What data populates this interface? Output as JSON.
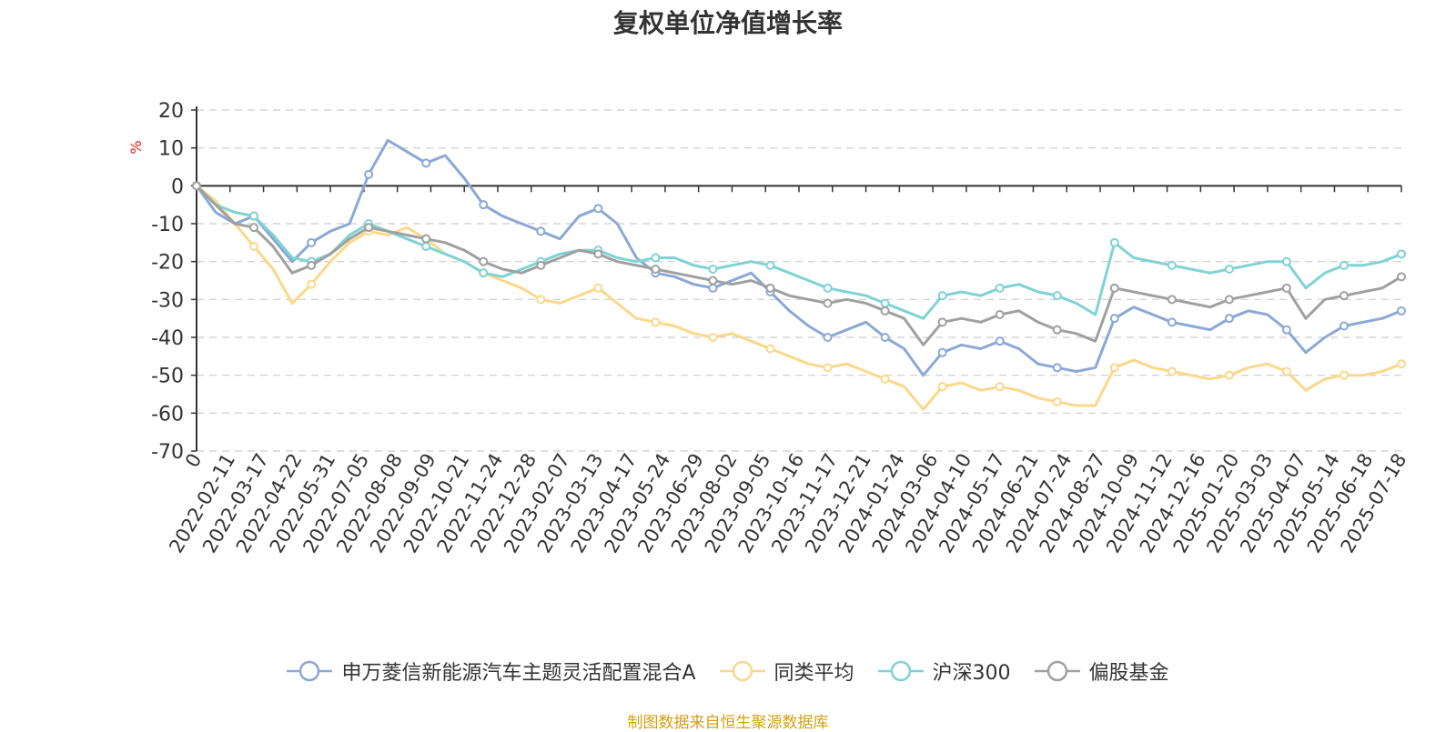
{
  "chart_data": {
    "type": "line",
    "title": "复权单位净值增长率",
    "ylabel": "%",
    "ylim": [
      -70,
      20
    ],
    "yticks": [
      20,
      10,
      0,
      -10,
      -20,
      -30,
      -40,
      -50,
      -60,
      -70
    ],
    "xticks": [
      "0",
      "2022-02-11",
      "2022-03-17",
      "2022-04-22",
      "2022-05-31",
      "2022-07-05",
      "2022-08-08",
      "2022-09-09",
      "2022-10-21",
      "2022-11-24",
      "2022-12-28",
      "2023-02-07",
      "2023-03-13",
      "2023-04-17",
      "2023-05-24",
      "2023-06-29",
      "2023-08-02",
      "2023-09-05",
      "2023-10-16",
      "2023-11-17",
      "2023-12-21",
      "2024-01-24",
      "2024-03-06",
      "2024-04-10",
      "2024-05-17",
      "2024-06-21",
      "2024-07-24",
      "2024-08-27",
      "2024-10-09",
      "2024-11-12",
      "2024-12-16",
      "2025-01-20",
      "2025-03-03",
      "2025-04-07",
      "2025-05-14",
      "2025-06-18",
      "2025-07-18"
    ],
    "grid": true,
    "legend_position": "bottom",
    "series": [
      {
        "name": "申万菱信新能源汽车主题灵活配置混合A",
        "color": "#8ba8d6",
        "values": [
          0,
          -7,
          -10,
          -8,
          -14,
          -20,
          -15,
          -12,
          -10,
          3,
          12,
          9,
          6,
          8,
          2,
          -5,
          -8,
          -10,
          -12,
          -14,
          -8,
          -6,
          -10,
          -19,
          -23,
          -24,
          -26,
          -27,
          -25,
          -23,
          -28,
          -33,
          -37,
          -40,
          -38,
          -36,
          -40,
          -43,
          -50,
          -44,
          -42,
          -43,
          -41,
          -43,
          -47,
          -48,
          -49,
          -48,
          -35,
          -32,
          -34,
          -36,
          -37,
          -38,
          -35,
          -33,
          -34,
          -38,
          -44,
          -40,
          -37,
          -36,
          -35,
          -33
        ]
      },
      {
        "name": "同类平均",
        "color": "#fbd88a",
        "values": [
          0,
          -4,
          -10,
          -16,
          -22,
          -31,
          -26,
          -20,
          -15,
          -12,
          -13,
          -11,
          -14,
          -18,
          -20,
          -23,
          -25,
          -27,
          -30,
          -31,
          -29,
          -27,
          -31,
          -35,
          -36,
          -37,
          -39,
          -40,
          -39,
          -41,
          -43,
          -45,
          -47,
          -48,
          -47,
          -49,
          -51,
          -53,
          -59,
          -53,
          -52,
          -54,
          -53,
          -54,
          -56,
          -57,
          -58,
          -58,
          -48,
          -46,
          -48,
          -49,
          -50,
          -51,
          -50,
          -48,
          -47,
          -49,
          -54,
          -51,
          -50,
          -50,
          -49,
          -47
        ]
      },
      {
        "name": "沪深300",
        "color": "#7fd3d3",
        "values": [
          0,
          -5,
          -7,
          -8,
          -13,
          -19,
          -20,
          -18,
          -13,
          -10,
          -12,
          -14,
          -16,
          -18,
          -20,
          -23,
          -24,
          -22,
          -20,
          -18,
          -17,
          -17,
          -19,
          -20,
          -19,
          -19,
          -21,
          -22,
          -21,
          -20,
          -21,
          -23,
          -25,
          -27,
          -28,
          -29,
          -31,
          -33,
          -35,
          -29,
          -28,
          -29,
          -27,
          -26,
          -28,
          -29,
          -31,
          -34,
          -15,
          -19,
          -20,
          -21,
          -22,
          -23,
          -22,
          -21,
          -20,
          -20,
          -27,
          -23,
          -21,
          -21,
          -20,
          -18
        ]
      },
      {
        "name": "偏股基金",
        "color": "#a0a0a0",
        "values": [
          0,
          -5,
          -10,
          -11,
          -16,
          -23,
          -21,
          -18,
          -14,
          -11,
          -12,
          -13,
          -14,
          -15,
          -17,
          -20,
          -22,
          -23,
          -21,
          -19,
          -17,
          -18,
          -20,
          -21,
          -22,
          -23,
          -24,
          -25,
          -26,
          -25,
          -27,
          -29,
          -30,
          -31,
          -30,
          -31,
          -33,
          -35,
          -42,
          -36,
          -35,
          -36,
          -34,
          -33,
          -36,
          -38,
          -39,
          -41,
          -27,
          -28,
          -29,
          -30,
          -31,
          -32,
          -30,
          -29,
          -28,
          -27,
          -35,
          -30,
          -29,
          -28,
          -27,
          -24
        ]
      }
    ]
  },
  "source_note": "制图数据来自恒生聚源数据库"
}
